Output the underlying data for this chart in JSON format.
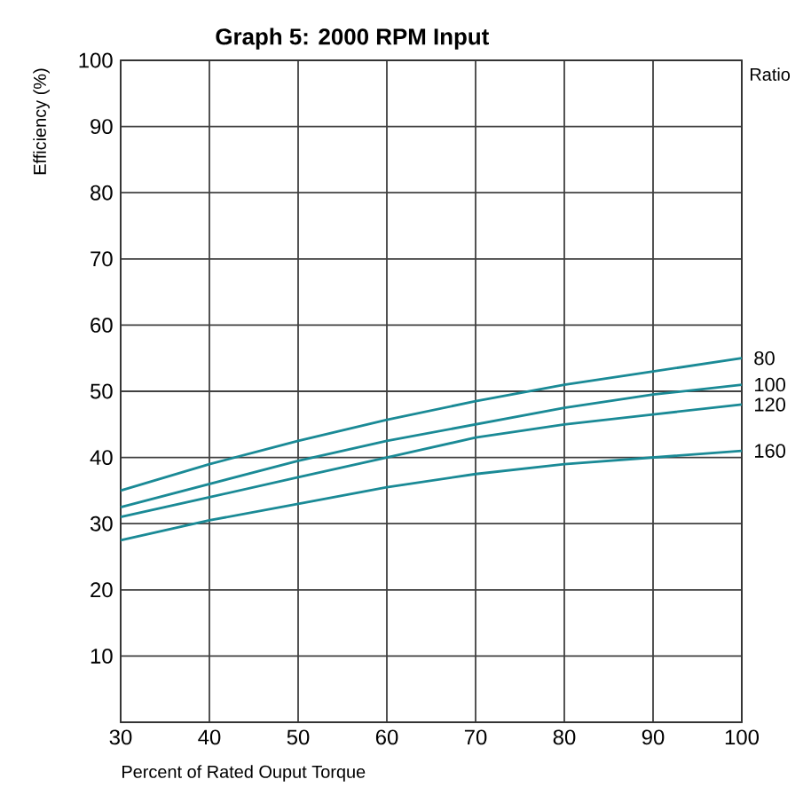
{
  "chart_data": {
    "type": "line",
    "title": "Graph 5:  2000 RPM Input",
    "xlabel": "Percent of Rated Ouput Torque",
    "ylabel": "Efficiency (%)",
    "legend_title": "Ratio",
    "x": [
      30,
      40,
      50,
      60,
      70,
      80,
      90,
      100
    ],
    "series": [
      {
        "name": "80",
        "color": "#1a8a96",
        "values": [
          35,
          39,
          42.5,
          45.7,
          48.5,
          51,
          53,
          55
        ]
      },
      {
        "name": "100",
        "color": "#1a8a96",
        "values": [
          32.5,
          36,
          39.5,
          42.5,
          45,
          47.5,
          49.5,
          51
        ]
      },
      {
        "name": "120",
        "color": "#1a8a96",
        "values": [
          31,
          34,
          37,
          40,
          43,
          45,
          46.5,
          48
        ]
      },
      {
        "name": "160",
        "color": "#1a8a96",
        "values": [
          27.5,
          30.5,
          33,
          35.5,
          37.5,
          39,
          40,
          41
        ]
      }
    ],
    "xlim": [
      30,
      100
    ],
    "ylim": [
      0,
      100
    ],
    "xticks": [
      30,
      40,
      50,
      60,
      70,
      80,
      90,
      100
    ],
    "yticks": [
      10,
      20,
      30,
      40,
      50,
      60,
      70,
      80,
      90,
      100
    ],
    "grid": true,
    "marker": "none",
    "line_style": "solid"
  }
}
